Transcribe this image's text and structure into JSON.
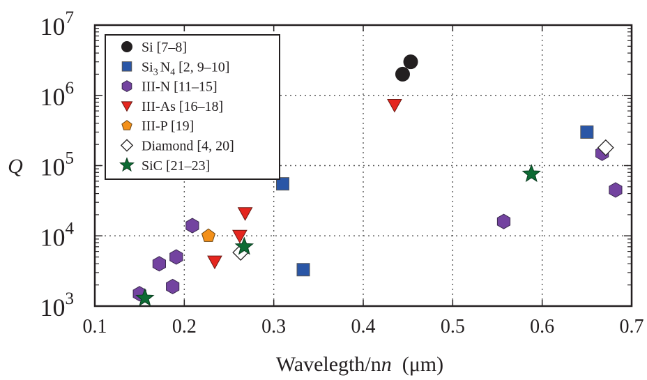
{
  "chart_data": {
    "type": "scatter",
    "title": "",
    "xlabel": "Wavelength/n",
    "xlabel_italic_part": "n",
    "xlabel_unit": "(μm)",
    "ylabel": "Q",
    "xlim": [
      0.1,
      0.7
    ],
    "ylim": [
      1000,
      10000000
    ],
    "yscale": "log",
    "grid": true,
    "legend_position": "top-left",
    "x_ticks": [
      "0.1",
      "0.2",
      "0.3",
      "0.4",
      "0.5",
      "0.6",
      "0.7"
    ],
    "y_ticks": [
      {
        "base": "10",
        "exp": "3",
        "value": 1000
      },
      {
        "base": "10",
        "exp": "4",
        "value": 10000
      },
      {
        "base": "10",
        "exp": "5",
        "value": 100000
      },
      {
        "base": "10",
        "exp": "6",
        "value": 1000000
      },
      {
        "base": "10",
        "exp": "7",
        "value": 10000000
      }
    ],
    "series": [
      {
        "name": "Si [7–8]",
        "marker": "circle",
        "color": "#231f20",
        "points": [
          [
            0.444,
            2000000
          ],
          [
            0.453,
            3000000
          ]
        ]
      },
      {
        "name": "Si3N4 [2, 9–10]",
        "name_parts": {
          "a": "Si",
          "sub1": "3",
          "b": "N",
          "sub2": "4",
          "c": " [2, 9–10]"
        },
        "marker": "square",
        "color": "#2a56a6",
        "points": [
          [
            0.31,
            55000
          ],
          [
            0.333,
            3300
          ],
          [
            0.65,
            300000
          ]
        ]
      },
      {
        "name": "III-N [11–15]",
        "marker": "hexagon",
        "color": "#7343a0",
        "points": [
          [
            0.15,
            1500
          ],
          [
            0.172,
            4000
          ],
          [
            0.187,
            1900
          ],
          [
            0.191,
            5000
          ],
          [
            0.209,
            14000
          ],
          [
            0.557,
            16000
          ],
          [
            0.667,
            150000
          ],
          [
            0.682,
            45000
          ]
        ]
      },
      {
        "name": "III-As [16–18]",
        "marker": "triangle-down",
        "color": "#e5261f",
        "points": [
          [
            0.435,
            730000
          ],
          [
            0.234,
            4300
          ],
          [
            0.262,
            10000
          ],
          [
            0.268,
            21000
          ]
        ]
      },
      {
        "name": "III-P [19]",
        "marker": "pentagon",
        "color": "#f39019",
        "points": [
          [
            0.227,
            10000
          ]
        ]
      },
      {
        "name": "Diamond [4, 20]",
        "marker": "diamond",
        "color": "#ffffff",
        "points": [
          [
            0.263,
            5800
          ],
          [
            0.671,
            180000
          ]
        ]
      },
      {
        "name": "SiC [21–23]",
        "marker": "star",
        "color": "#0d6b34",
        "points": [
          [
            0.156,
            1300
          ],
          [
            0.267,
            7000
          ],
          [
            0.588,
            76000
          ]
        ]
      }
    ]
  }
}
